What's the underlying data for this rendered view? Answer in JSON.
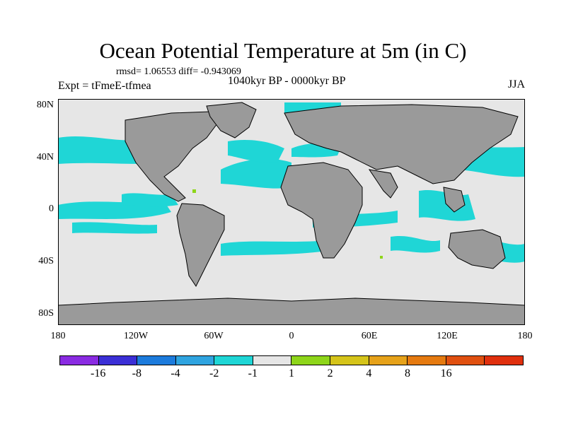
{
  "title": "Ocean Potential Temperature at 5m (in C)",
  "stats": "rmsd= 1.06553  diff= -0.943069",
  "experiment": "Expt = tFmeE-tfmea",
  "period": "1040kyr BP - 0000kyr BP",
  "season": "JJA",
  "y_axis_labels": [
    "80N",
    "40N",
    "0",
    "40S",
    "80S"
  ],
  "x_axis_labels": [
    "180",
    "120W",
    "60W",
    "0",
    "60E",
    "120E",
    "180"
  ],
  "colorbar": {
    "colors": [
      "#8a2be2",
      "#3b2fd6",
      "#1c7bdc",
      "#2fa4e0",
      "#1fd6d6",
      "#e6e6e6",
      "#8ed51a",
      "#d5c41a",
      "#e6a21a",
      "#e57a10",
      "#e05010",
      "#e0300e"
    ],
    "labels": [
      "-16",
      "-8",
      "-4",
      "-2",
      "-1",
      "1",
      "2",
      "4",
      "8",
      "16"
    ]
  },
  "palette": {
    "land": "#9a9a9a",
    "ocean_neutral": "#e6e6e6",
    "cool_anomaly": "#1fd6d6",
    "cool_anomaly_mid": "#2fa4e0",
    "warm_anomaly": "#8ed51a"
  }
}
